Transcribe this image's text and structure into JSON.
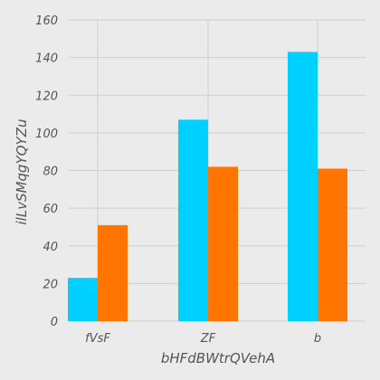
{
  "chart_data": {
    "type": "bar",
    "title": "",
    "xlabel": "bHFdBWtrQVehA",
    "ylabel": "ilLvSMqgYQYZu",
    "categories": [
      "fVsF",
      "ZF",
      "b"
    ],
    "series": [
      {
        "values": [
          23,
          107,
          143
        ],
        "color": "#00d0ff"
      },
      {
        "values": [
          51,
          82,
          81
        ],
        "color": "#ff7500"
      }
    ],
    "ylim": [
      0,
      160
    ],
    "yticks": [
      "0",
      "20",
      "40",
      "60",
      "80",
      "100",
      "120",
      "140",
      "160"
    ],
    "grid": true,
    "background": "#ebebeb"
  }
}
